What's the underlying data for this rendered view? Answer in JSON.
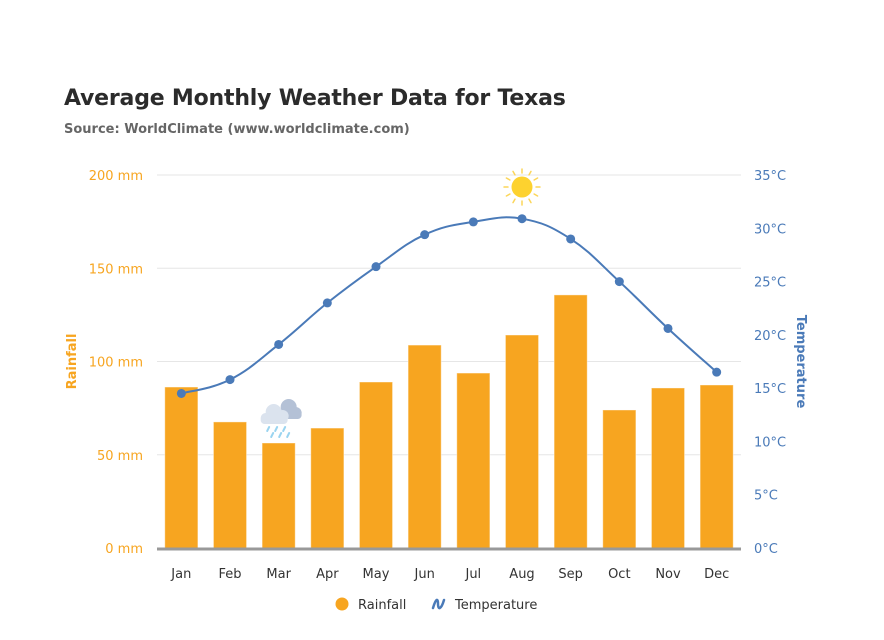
{
  "chart_data": {
    "type": "bar+line",
    "title": "Average Monthly Weather Data for Texas",
    "subtitle": "Source: WorldClimate (www.worldclimate.com)",
    "categories": [
      "Jan",
      "Feb",
      "Mar",
      "Apr",
      "May",
      "Jun",
      "Jul",
      "Aug",
      "Sep",
      "Oct",
      "Nov",
      "Dec"
    ],
    "series": [
      {
        "name": "Rainfall",
        "type": "column",
        "axis": "left",
        "color": "#f7a520",
        "values": [
          86.3,
          67.6,
          56.3,
          64.3,
          89.0,
          108.8,
          93.8,
          114.2,
          135.7,
          74.0,
          85.8,
          87.4
        ]
      },
      {
        "name": "Temperature",
        "type": "spline",
        "axis": "right",
        "color": "#4a7ab8",
        "values": [
          14.5,
          15.8,
          19.1,
          23.0,
          26.4,
          29.4,
          30.6,
          30.9,
          29.0,
          25.0,
          20.6,
          16.5
        ]
      }
    ],
    "y_left": {
      "title": "Rainfall",
      "range": [
        0,
        200
      ],
      "ticks": [
        0,
        50,
        100,
        150,
        200
      ],
      "tick_labels": [
        "0 mm",
        "50 mm",
        "100 mm",
        "150 mm",
        "200 mm"
      ]
    },
    "y_right": {
      "title": "Temperature",
      "range": [
        0,
        35
      ],
      "ticks": [
        0,
        5,
        10,
        15,
        20,
        25,
        30,
        35
      ],
      "tick_labels": [
        "0°C",
        "5°C",
        "10°C",
        "15°C",
        "20°C",
        "25°C",
        "30°C",
        "35°C"
      ]
    },
    "grid": true,
    "legend": {
      "position": "bottom-center",
      "items": [
        {
          "label": "Rainfall",
          "symbol": "circle",
          "color": "#f7a520"
        },
        {
          "label": "Temperature",
          "symbol": "line",
          "color": "#4a7ab8"
        }
      ]
    },
    "annotations": [
      {
        "type": "icon",
        "name": "sun-icon",
        "month": "Aug",
        "near": "temperature-max"
      },
      {
        "type": "icon",
        "name": "rain-cloud-icon",
        "month": "Mar",
        "near": "rainfall-min"
      }
    ]
  }
}
